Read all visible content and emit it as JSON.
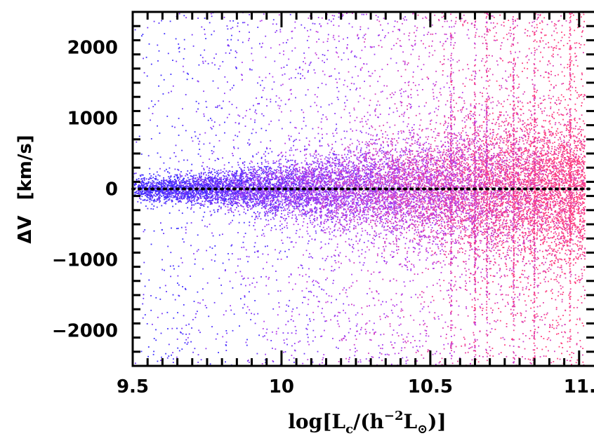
{
  "chart_data": {
    "type": "scatter",
    "title": "",
    "xlabel_parts": {
      "prefix": "log[L",
      "sub_c": "c",
      "middle": "/(h",
      "sup": "−2",
      "L": "L",
      "sub_sun": "⊙",
      "suffix": ")]"
    },
    "ylabel_parts": {
      "delta": "ΔV",
      "unit": "[km/s]"
    },
    "xlim": [
      9.5,
      11.05
    ],
    "ylim": [
      -2500,
      2500
    ],
    "x_ticks": [
      {
        "value": 9.5,
        "label": "9.5"
      },
      {
        "value": 10,
        "label": "10"
      },
      {
        "value": 10.5,
        "label": "10.5"
      },
      {
        "value": 11,
        "label": "11.0"
      }
    ],
    "y_ticks": [
      {
        "value": 2000,
        "label": "2000"
      },
      {
        "value": 1000,
        "label": "1000"
      },
      {
        "value": 0,
        "label": "0"
      },
      {
        "value": -1000,
        "label": "−1000"
      },
      {
        "value": -2000,
        "label": "−2000"
      }
    ],
    "reference_line": {
      "y": 0,
      "style": "dotted",
      "color": "#000000"
    },
    "grid": false,
    "legend": "none",
    "colors": {
      "low": "#3a2cff",
      "mid": "#b23cf0",
      "high": "#ff3c7a"
    },
    "point_cloud_description_values": {
      "core_sigma_by_x": [
        {
          "x": 9.5,
          "sigma": 80
        },
        {
          "x": 9.8,
          "sigma": 130
        },
        {
          "x": 10.0,
          "sigma": 200
        },
        {
          "x": 10.3,
          "sigma": 300
        },
        {
          "x": 10.6,
          "sigma": 420
        },
        {
          "x": 10.8,
          "sigma": 480
        },
        {
          "x": 11.0,
          "sigma": 520
        }
      ],
      "vertical_streaks_x": [
        10.57,
        10.65,
        10.69,
        10.78,
        10.85,
        10.97
      ]
    }
  }
}
